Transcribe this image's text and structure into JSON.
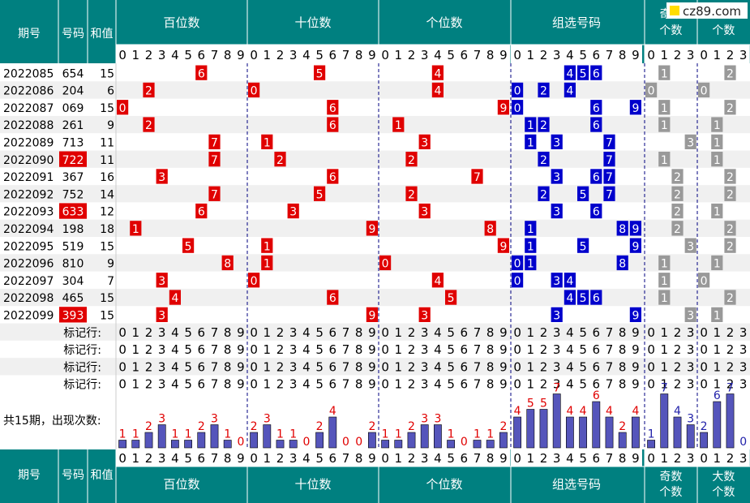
{
  "site_logo": "cz89.com",
  "colors": {
    "header_bg": "#008080",
    "header_text": "#ffffff",
    "red_ball": "#e00000",
    "blue_ball": "#0000cc",
    "gray_ball": "#999999",
    "alt_row_bg": "#f0f0f0",
    "bar_fill": "#5555bb",
    "count_text": "#e00000",
    "divider": "#000080"
  },
  "headers": {
    "period": "期号",
    "number": "号码",
    "sum": "和值",
    "hundreds": "百位数",
    "tens": "十位数",
    "units": "个位数",
    "group": "组选号码",
    "odd_line1": "奇数",
    "odd_line2": "个数",
    "big_line1": "大数",
    "big_line2": "个数"
  },
  "mark_label": "标记行:",
  "count_label": "共15期，出现次数:",
  "chart_data": {
    "type": "table",
    "rows": [
      {
        "period": "2022085",
        "number": "654",
        "sum": "15",
        "digits": [
          6,
          5,
          4
        ],
        "odd": 1,
        "big": 2
      },
      {
        "period": "2022086",
        "number": "204",
        "sum": "6",
        "digits": [
          2,
          0,
          4
        ],
        "odd": 0,
        "big": 0
      },
      {
        "period": "2022087",
        "number": "069",
        "sum": "15",
        "digits": [
          0,
          6,
          9
        ],
        "odd": 1,
        "big": 2
      },
      {
        "period": "2022088",
        "number": "261",
        "sum": "9",
        "digits": [
          2,
          6,
          1
        ],
        "odd": 1,
        "big": 1
      },
      {
        "period": "2022089",
        "number": "713",
        "sum": "11",
        "digits": [
          7,
          1,
          3
        ],
        "odd": 3,
        "big": 1
      },
      {
        "period": "2022090",
        "number": "722",
        "sum": "11",
        "digits": [
          7,
          2,
          2
        ],
        "odd": 1,
        "big": 1
      },
      {
        "period": "2022091",
        "number": "367",
        "sum": "16",
        "digits": [
          3,
          6,
          7
        ],
        "odd": 2,
        "big": 2
      },
      {
        "period": "2022092",
        "number": "752",
        "sum": "14",
        "digits": [
          7,
          5,
          2
        ],
        "odd": 2,
        "big": 2
      },
      {
        "period": "2022093",
        "number": "633",
        "sum": "12",
        "digits": [
          6,
          3,
          3
        ],
        "odd": 2,
        "big": 1
      },
      {
        "period": "2022094",
        "number": "198",
        "sum": "18",
        "digits": [
          1,
          9,
          8
        ],
        "odd": 2,
        "big": 2
      },
      {
        "period": "2022095",
        "number": "519",
        "sum": "15",
        "digits": [
          5,
          1,
          9
        ],
        "odd": 3,
        "big": 2
      },
      {
        "period": "2022096",
        "number": "810",
        "sum": "9",
        "digits": [
          8,
          1,
          0
        ],
        "odd": 1,
        "big": 1
      },
      {
        "period": "2022097",
        "number": "304",
        "sum": "7",
        "digits": [
          3,
          0,
          4
        ],
        "odd": 1,
        "big": 0
      },
      {
        "period": "2022098",
        "number": "465",
        "sum": "15",
        "digits": [
          4,
          6,
          5
        ],
        "odd": 1,
        "big": 2
      },
      {
        "period": "2022099",
        "number": "393",
        "sum": "15",
        "digits": [
          3,
          9,
          3
        ],
        "odd": 3,
        "big": 1
      }
    ],
    "highlight_rows": [
      "2022090",
      "2022093",
      "2022099"
    ],
    "counts": {
      "hundreds": [
        1,
        1,
        2,
        3,
        1,
        1,
        2,
        3,
        1,
        0
      ],
      "tens": [
        2,
        3,
        1,
        1,
        0,
        2,
        4,
        0,
        0,
        2
      ],
      "units": [
        1,
        1,
        2,
        3,
        3,
        1,
        0,
        1,
        1,
        2
      ],
      "group": [
        4,
        5,
        5,
        7,
        4,
        4,
        6,
        4,
        2,
        4
      ],
      "odd": [
        1,
        7,
        4,
        3
      ],
      "big": [
        2,
        6,
        7,
        0
      ]
    }
  }
}
